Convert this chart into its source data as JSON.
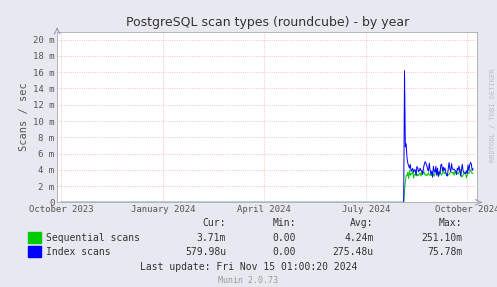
{
  "title": "PostgreSQL scan types (roundcube) - by year",
  "ylabel": "Scans / sec",
  "background_color": "#e8e8f0",
  "plot_bg_color": "#ffffff",
  "grid_color": "#ffaaaa",
  "border_color": "#aaaaaa",
  "ytick_labels": [
    "0",
    "2 m",
    "4 m",
    "6 m",
    "8 m",
    "10 m",
    "12 m",
    "14 m",
    "16 m",
    "18 m",
    "20 m"
  ],
  "ytick_values": [
    0,
    2000000,
    4000000,
    6000000,
    8000000,
    10000000,
    12000000,
    14000000,
    16000000,
    18000000,
    20000000
  ],
  "ylim": [
    0,
    21000000
  ],
  "xtick_labels": [
    "October 2023",
    "January 2024",
    "April 2024",
    "July 2024",
    "October 2024"
  ],
  "xtick_pos": [
    0.0,
    0.247,
    0.493,
    0.74,
    0.986
  ],
  "seq_color": "#00cc00",
  "idx_color": "#0000ff",
  "stats_headers": [
    "Cur:",
    "Min:",
    "Avg:",
    "Max:"
  ],
  "stats_rows": [
    {
      "name": "Sequential scans",
      "color": "#00cc00",
      "values": [
        "3.71m",
        "0.00",
        "4.24m",
        "251.10m"
      ]
    },
    {
      "name": "Index scans",
      "color": "#0000ff",
      "values": [
        "579.98u",
        "0.00",
        "275.48u",
        "75.78m"
      ]
    }
  ],
  "footer": "Last update: Fri Nov 15 01:00:20 2024",
  "munin_version": "Munin 2.0.73",
  "watermark": "RRDTOOL / TOBI OETIKER",
  "arrow_color": "#9999bb",
  "title_color": "#333333",
  "axis_label_color": "#555555",
  "text_color": "#333333",
  "munin_color": "#999999"
}
